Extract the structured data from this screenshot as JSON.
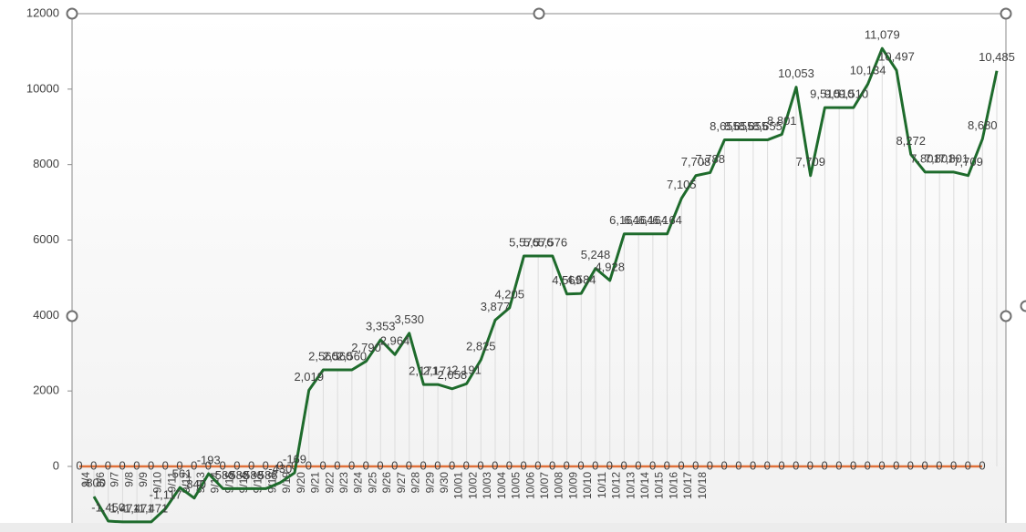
{
  "chart_data": {
    "type": "line",
    "categories": [
      "9/4",
      "9/6",
      "9/7",
      "9/8",
      "9/9",
      "9/10",
      "9/11",
      "9/12",
      "9/13",
      "9/14",
      "9/15",
      "9/16",
      "9/17",
      "9/18",
      "9/19",
      "9/20",
      "9/21",
      "9/22",
      "9/23",
      "9/24",
      "9/25",
      "9/26",
      "9/27",
      "9/28",
      "9/29",
      "9/30",
      "10/01",
      "10/02",
      "10/03",
      "10/04",
      "10/05",
      "10/06",
      "10/07",
      "10/08",
      "10/09",
      "10/10",
      "10/11",
      "10/12",
      "10/13",
      "10/14",
      "10/15",
      "10/16",
      "10/17",
      "10/18",
      null,
      null,
      null,
      null,
      null,
      null,
      null,
      null,
      null,
      null,
      null,
      null,
      null,
      null,
      null,
      null,
      null,
      null,
      null,
      null
    ],
    "series": [
      {
        "color": "#1e6b2c",
        "values": [
          -800,
          -1450,
          -1471,
          -1471,
          -1471,
          -1117,
          -561,
          -840,
          -193,
          -588,
          -588,
          -588,
          -588,
          -430,
          -169,
          2019,
          2560,
          2560,
          2560,
          2790,
          3353,
          2964,
          3530,
          2171,
          2171,
          2058,
          2191,
          2825,
          3877,
          4205,
          5576,
          5576,
          5576,
          4569,
          4584,
          5248,
          4928,
          6164,
          6164,
          6164,
          6164,
          7105,
          7708,
          7788,
          8655,
          8655,
          8655,
          8655,
          8801,
          10053,
          7709,
          9510,
          9510,
          9510,
          10134,
          11079,
          10497,
          8272,
          7801,
          7801,
          7801,
          7709,
          8680,
          10485
        ],
        "value_labels": [
          "-800",
          "-1,450",
          "-1,471",
          "-1,471",
          "-1,471",
          "-1,117",
          "-561",
          "-840",
          "-193",
          "-588",
          "-588",
          "-588",
          "-588",
          "-430",
          "-169",
          "2,019",
          "2,560",
          "2,560",
          "2,560",
          "2,790",
          "3,353",
          "2,964",
          "3,530",
          "2,171",
          "2,171",
          "2,058",
          "2,191",
          "2,825",
          "3,877",
          "4,205",
          "5,576",
          "5,576",
          "5,576",
          "4,569",
          "4,584",
          "5,248",
          "4,928",
          "6,164",
          "6,164",
          "6,164",
          "6,164",
          "7,105",
          "7,708",
          "7,788",
          "8,655",
          "8,655",
          "8,655",
          "8,655",
          "8,801",
          "10,053",
          "7,709",
          "9,510",
          "9,510",
          "9,510",
          "10,134",
          "11,079",
          "10,497",
          "8,272",
          "7,801",
          "7,801",
          "7,801",
          "7,709",
          "8,680",
          "10,485"
        ]
      },
      {
        "color": "#e0713a",
        "values": [
          0,
          0,
          0,
          0,
          0,
          0,
          0,
          0,
          0,
          0,
          0,
          0,
          0,
          0,
          0,
          0,
          0,
          0,
          0,
          0,
          0,
          0,
          0,
          0,
          0,
          0,
          0,
          0,
          0,
          0,
          0,
          0,
          0,
          0,
          0,
          0,
          0,
          0,
          0,
          0,
          0,
          0,
          0,
          0,
          0,
          0,
          0,
          0,
          0,
          0,
          0,
          0,
          0,
          0,
          0,
          0,
          0,
          0,
          0,
          0,
          0,
          0,
          0,
          0
        ]
      }
    ],
    "ylim": [
      -1500,
      12000
    ],
    "yticks": [
      0,
      2000,
      4000,
      6000,
      8000,
      10000,
      12000
    ],
    "grid": false
  }
}
